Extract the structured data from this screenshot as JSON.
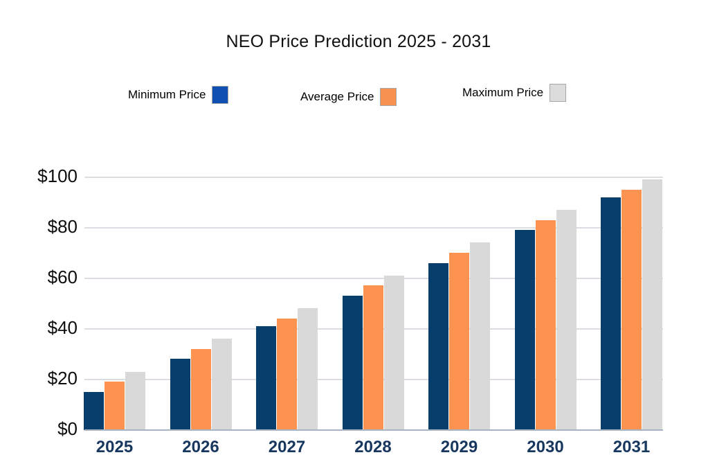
{
  "chart_data": {
    "type": "bar",
    "title": "NEO Price Prediction 2025 - 2031",
    "categories": [
      "2025",
      "2026",
      "2027",
      "2028",
      "2029",
      "2030",
      "2031"
    ],
    "series": [
      {
        "name": "Minimum Price",
        "color": "#083e6b",
        "legend_color": "#0e4fb1",
        "values": [
          15,
          28,
          41,
          53,
          66,
          79,
          92
        ]
      },
      {
        "name": "Average Price",
        "color": "#fd9351",
        "legend_color": "#f7914f",
        "values": [
          19,
          32,
          44,
          57,
          70,
          83,
          95
        ]
      },
      {
        "name": "Maximum Price",
        "color": "#d9d9d9",
        "legend_color": "#dcdcdc",
        "values": [
          23,
          36,
          48,
          61,
          74,
          87,
          99
        ]
      }
    ],
    "ylim": [
      0,
      100
    ],
    "y_ticks": [
      0,
      20,
      40,
      60,
      80,
      100
    ],
    "y_tick_labels": [
      "$0",
      "$20",
      "$40",
      "$60",
      "$80",
      "$100"
    ],
    "grid": true,
    "legend_position": "top-center-row",
    "xlabel": "",
    "ylabel": ""
  },
  "colors": {
    "background": "#ffffff",
    "gridline": "#dadde1",
    "baseline": "#a7b3c2",
    "title_text": "#111111",
    "y_tick_text": "#0d0d0d",
    "x_tick_text": "#17375e",
    "legend_text": "#000000",
    "swatch_border": "#a6a6a6"
  }
}
